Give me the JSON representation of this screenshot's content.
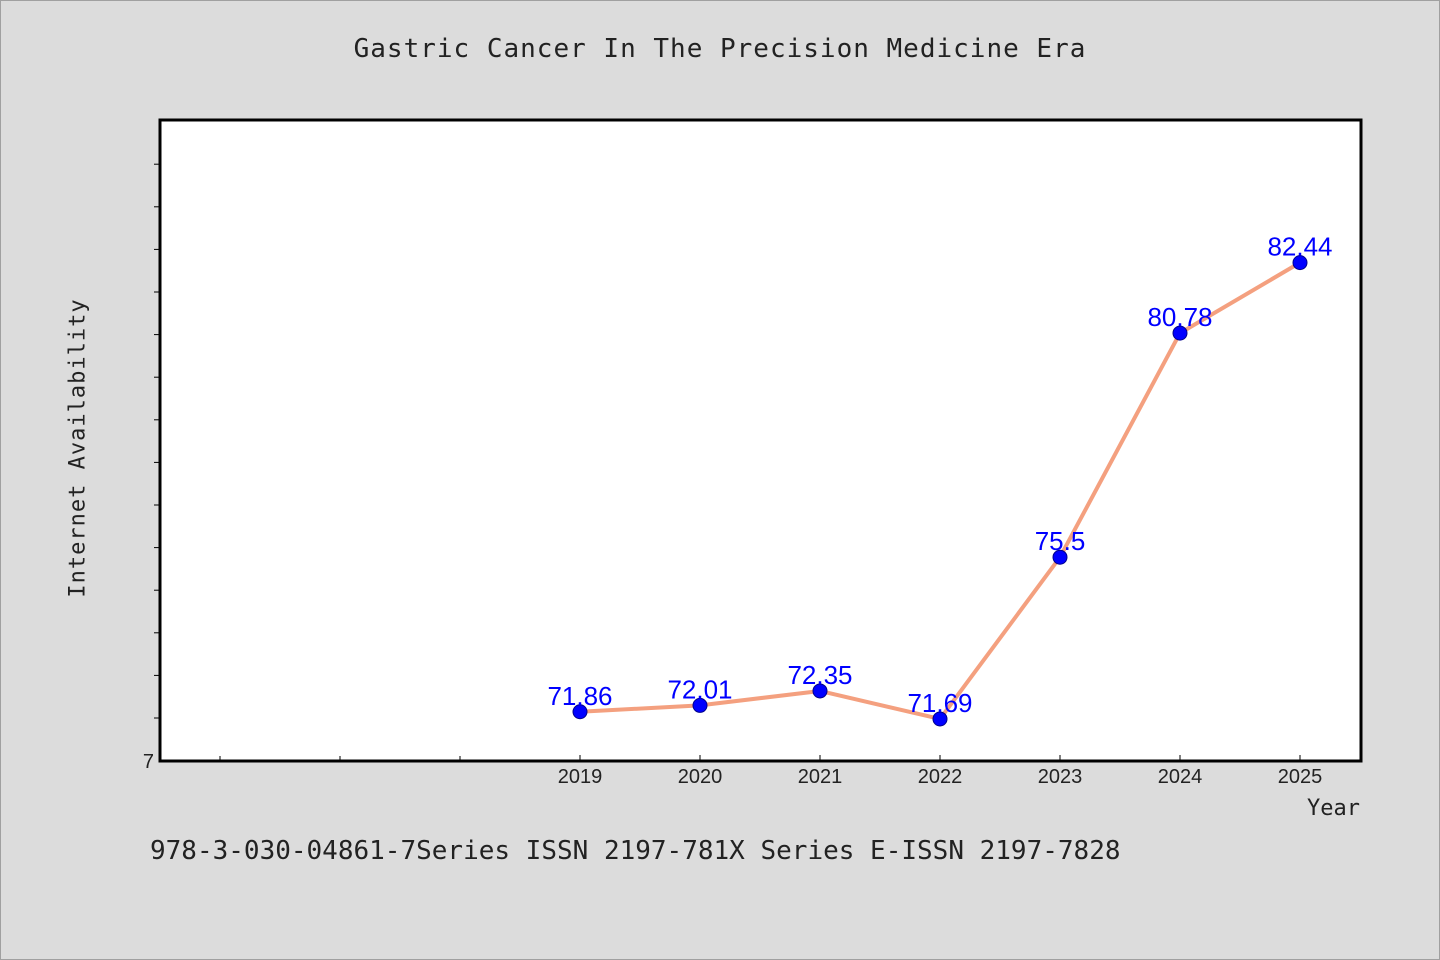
{
  "chart_data": {
    "type": "line",
    "title": "Gastric Cancer In The Precision Medicine Era",
    "xlabel": "Year",
    "ylabel": "Internet Availability",
    "x": [
      "2019",
      "2020",
      "2021",
      "2022",
      "2023",
      "2024",
      "2025"
    ],
    "series": [
      {
        "values": [
          71.86,
          72.01,
          72.35,
          71.69,
          75.5,
          80.78,
          82.44
        ]
      }
    ],
    "data_labels": [
      "71.86",
      "72.01",
      "72.35",
      "71.69",
      "75.5",
      "80.78",
      "82.44"
    ],
    "y_tick_labels": [
      "7"
    ],
    "ylim": [
      70.7,
      85.8
    ],
    "grid": false,
    "colors": {
      "line": "#f4a07f",
      "marker": "#0000ff",
      "label": "#0000ff"
    }
  },
  "footer": {
    "text": "978-3-030-04861-7Series ISSN 2197-781X Series E-ISSN 2197-7828"
  }
}
